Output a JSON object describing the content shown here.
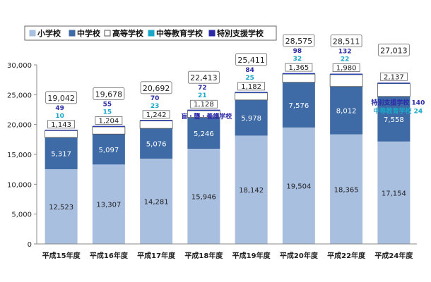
{
  "chart_data": {
    "type": "bar",
    "stacked": true,
    "categories": [
      "平成15年度",
      "平成16年度",
      "平成17年度",
      "平成18年度",
      "平成19年度",
      "平成20年度",
      "平成22年度",
      "平成24年度"
    ],
    "series": [
      {
        "name": "小学校",
        "color": "#a9bfe0",
        "values": [
          12523,
          13307,
          14281,
          15946,
          18142,
          19504,
          18365,
          17154
        ]
      },
      {
        "name": "中学校",
        "color": "#3e6aa6",
        "values": [
          5317,
          5097,
          5076,
          5246,
          5978,
          7576,
          8012,
          7558
        ]
      },
      {
        "name": "高等学校",
        "color": "#ffffff",
        "values": [
          1143,
          1204,
          1242,
          1128,
          1182,
          1365,
          1980,
          2137
        ]
      },
      {
        "name": "中等教育学校",
        "color": "#1aa7c9",
        "values": [
          10,
          15,
          23,
          21,
          25,
          32,
          22,
          24
        ]
      },
      {
        "name": "特別支援学校",
        "color": "#2b2ba8",
        "values": [
          49,
          55,
          70,
          72,
          84,
          98,
          132,
          140
        ]
      }
    ],
    "totals": [
      "19,042",
      "19,678",
      "20,692",
      "22,413",
      "25,411",
      "28,575",
      "28,511",
      "27,013"
    ],
    "value_labels": {
      "小学校": [
        "12,523",
        "13,307",
        "14,281",
        "15,946",
        "18,142",
        "19,504",
        "18,365",
        "17,154"
      ],
      "中学校": [
        "5,317",
        "5,097",
        "5,076",
        "5,246",
        "5,978",
        "7,576",
        "8,012",
        "7,558"
      ],
      "高等学校": [
        "1,143",
        "1,204",
        "1,242",
        "1,128",
        "1,182",
        "1,365",
        "1,980",
        "2,137"
      ],
      "中等教育学校": [
        "10",
        "15",
        "23",
        "21",
        "25",
        "32",
        "22",
        "24"
      ],
      "特別支援学校": [
        "49",
        "55",
        "70",
        "72",
        "84",
        "98",
        "132",
        "140"
      ]
    },
    "annotations": {
      "mou_label": "盲・聾・養護学校",
      "tokubetsu_label": "特別支援学校 140",
      "chuto_label": "中等教育学校 24"
    },
    "yticks": [
      "0",
      "5,000",
      "10,000",
      "15,000",
      "20,000",
      "25,000",
      "30,000"
    ],
    "ylim": [
      0,
      30000
    ],
    "legend_position": "top-left",
    "title": "",
    "xlabel": "",
    "ylabel": ""
  }
}
